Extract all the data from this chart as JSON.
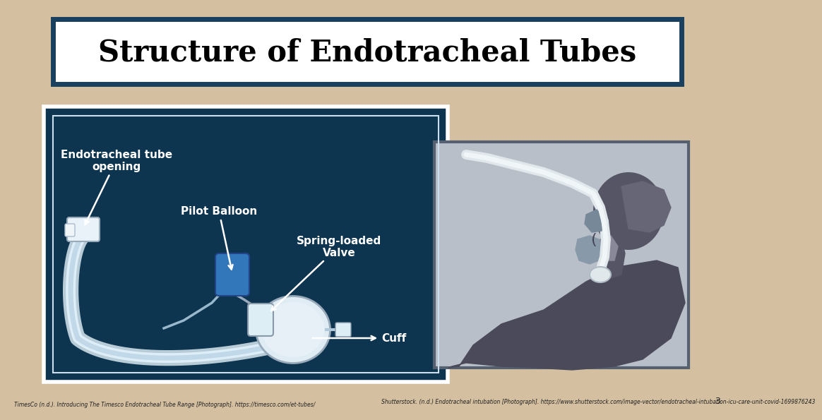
{
  "title": "Structure of Endotracheal Tubes",
  "title_fontsize": 30,
  "title_color": "#000000",
  "title_box_bg": "#ffffff",
  "title_box_border": "#1a4060",
  "slide_bg": "#d4bfa0",
  "left_panel_bg": "#0d3550",
  "left_panel_border": "#ffffff",
  "right_panel_bg": "#b8bfc8",
  "right_panel_border": "#556070",
  "label_color": "#ffffff",
  "label_fontsize": 11,
  "citation_fontsize": 5.5,
  "citation_color": "#222222",
  "page_number": "3",
  "citation_left": "TimesCo (n.d.). Introducing The Timesco Endotracheal Tube Range [Photograph]. https://timesco.com/et-tubes/",
  "citation_right": "Shutterstock. (n.d.) Endotracheal intubation [Photograph]. https://www.shutterstock.com/image-vector/endotracheal-intubation-icu-care-unit-covid-1699876243"
}
